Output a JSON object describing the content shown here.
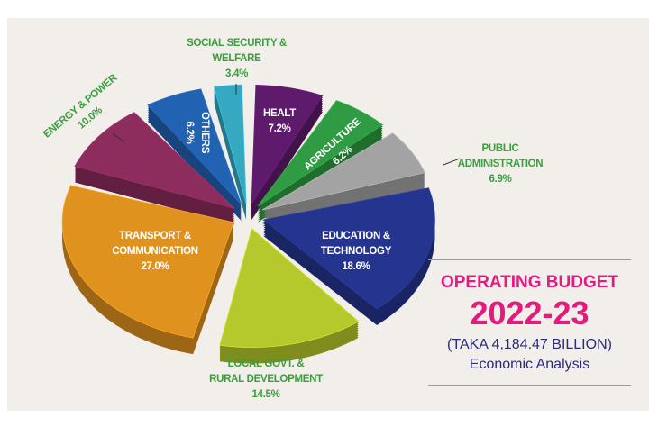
{
  "chart_data": {
    "type": "pie",
    "title": "OPERATING BUDGET",
    "subtitle": "2022-23",
    "note": "(TAKA 4,184.47 BILLION)",
    "caption": "Economic Analysis",
    "slices": [
      {
        "label": "SOCIAL SECURITY & WELFARE",
        "value": 3.4,
        "pct": "3.4%",
        "color": "#36a9c2"
      },
      {
        "label": "HEALT",
        "value": 7.2,
        "pct": "7.2%",
        "color": "#5e1a6b"
      },
      {
        "label": "AGRICULTURE",
        "value": 6.2,
        "pct": "6.2%",
        "color": "#2f9b42"
      },
      {
        "label": "PUBLIC ADMINISTRATION",
        "value": 6.9,
        "pct": "6.9%",
        "color": "#a3a3a3"
      },
      {
        "label": "EDUCATION & TECHNOLOGY",
        "value": 18.6,
        "pct": "18.6%",
        "color": "#25358f"
      },
      {
        "label": "LOCAL GOVT. & RURAL DEVELOPMENT",
        "value": 14.5,
        "pct": "14.5%",
        "color": "#b6c92c"
      },
      {
        "label": "TRANSPORT & COMMUNICATION",
        "value": 27.0,
        "pct": "27.0%",
        "color": "#e0921f"
      },
      {
        "label": "ENERGY & POWER",
        "value": 10.0,
        "pct": "10.0%",
        "color": "#8c2d5d"
      },
      {
        "label": "OTHERS",
        "value": 6.2,
        "pct": "6.2%",
        "color": "#2262b2"
      }
    ]
  },
  "labels": {
    "social1": "SOCIAL SECURITY &",
    "social2": "WELFARE",
    "health": "HEALT",
    "agri": "AGRICULTURE",
    "pub1": "PUBLIC",
    "pub2": "ADMINISTRATION",
    "edu1": "EDUCATION &",
    "edu2": "TECHNOLOGY",
    "local1": "LOCAL GOVT. &",
    "local2": "RURAL DEVELOPMENT",
    "trans1": "TRANSPORT &",
    "trans2": "COMMUNICATION",
    "energy": "ENERGY & POWER",
    "others": "OTHERS"
  }
}
